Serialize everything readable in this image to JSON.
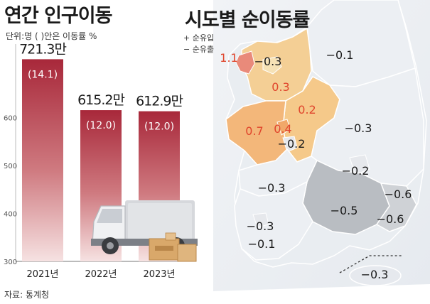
{
  "left_title": "연간 인구이동",
  "unit_note": "단위:명 ( )안은 이동률 %",
  "right_title": "시도별 순이동률",
  "legend": {
    "plus": "+ 순유입",
    "minus": "− 순유출"
  },
  "source": "자료: 통계청",
  "colors": {
    "bar_top": "#a8283a",
    "bar_bottom": "#f5dede",
    "positive": "#e0452c",
    "negative": "#1a1a1a"
  },
  "chart_data": [
    {
      "type": "bar",
      "title": "연간 인구이동",
      "categories": [
        "2021년",
        "2022년",
        "2023년"
      ],
      "series": [
        {
          "values": [
            721.3,
            615.2,
            612.9
          ]
        }
      ],
      "value_labels": [
        "721.3만",
        "615.2만",
        "612.9만"
      ],
      "rate_labels": [
        "(14.1)",
        "(12.0)",
        "(12.0)"
      ],
      "y_ticks": [
        "300",
        "400",
        "500",
        "600"
      ],
      "ylim": [
        300,
        750
      ],
      "ylabel": "",
      "xlabel": ""
    },
    {
      "type": "table",
      "title": "시도별 순이동률",
      "net_migration_rates": [
        "1.1",
        "-0.3",
        "-0.1",
        "0.3",
        "0.2",
        "0.7",
        "0.4",
        "-0.2",
        "-0.3",
        "-0.2",
        "-0.3",
        "-0.6",
        "-0.5",
        "-0.6",
        "-0.3",
        "-0.1",
        "-0.3"
      ]
    }
  ]
}
